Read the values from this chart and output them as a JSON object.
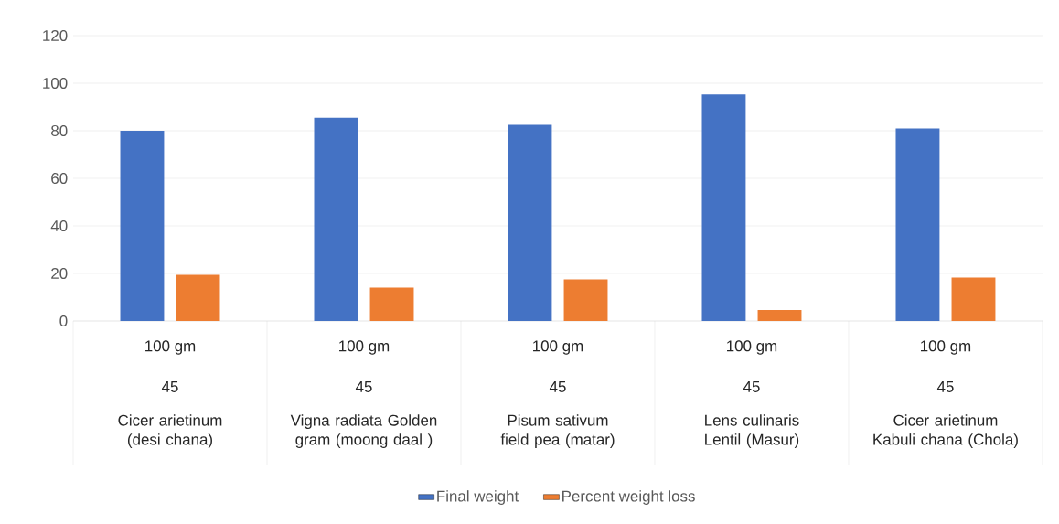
{
  "chart_data": {
    "type": "bar",
    "categories": [
      "Cicer arietinum (desi chana)",
      "Vigna radiata Golden gram (moong daal )",
      "Pisum sativum field pea (matar)",
      "Lens culinaris Lentil (Masur)",
      "Cicer arietinum Kabuli chana (Chola)"
    ],
    "series": [
      {
        "name": "Final weight",
        "color": "#4472c4",
        "values": [
          80,
          85.5,
          82.5,
          95.3,
          81
        ]
      },
      {
        "name": "Percent weight loss",
        "color": "#ed7d31",
        "values": [
          19.4,
          14,
          17.5,
          4.6,
          18.3
        ]
      }
    ],
    "ylim": [
      0,
      120
    ],
    "yticks": [
      0,
      20,
      40,
      60,
      80,
      100,
      120
    ],
    "grid": "y",
    "legend": "bottom",
    "annotations": [
      "100 gm",
      "100 gm",
      "100 gm",
      "100 gm",
      "100 gm",
      "45",
      "45",
      "45",
      "45",
      "45"
    ]
  }
}
